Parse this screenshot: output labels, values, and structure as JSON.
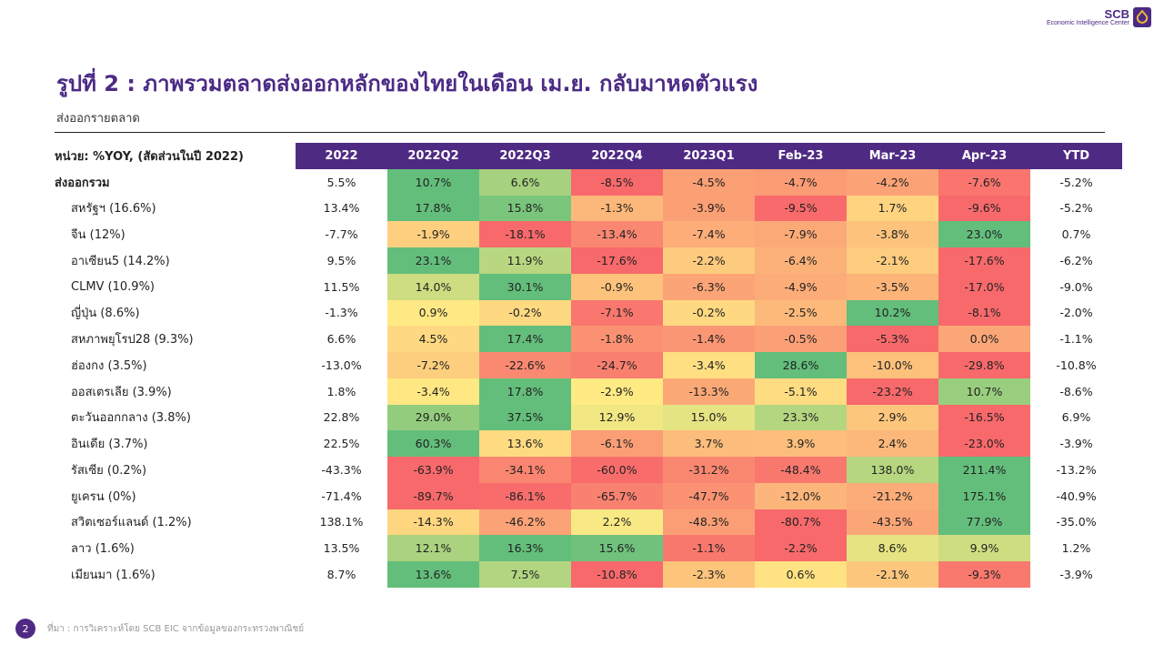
{
  "logo": {
    "brand": "SCB",
    "subtitle": "Economic Intelligence Center"
  },
  "title": "รูปที่ 2 : ภาพรวมตลาดส่งออกหลักของไทยในเดือน เม.ย. กลับมาหดตัวแรง",
  "subtitle": "ส่งออกรายตลาด",
  "colors": {
    "accent": "#4F2A83",
    "heat_low": "#F8696B",
    "heat_mid": "#FFEB84",
    "heat_high": "#63BE7B"
  },
  "chart_data": {
    "type": "heatmap",
    "unit_label": "หน่วย: %YOY, (สัดส่วนในปี 2022)",
    "columns": [
      "2022",
      "2022Q2",
      "2022Q3",
      "2022Q4",
      "2023Q1",
      "Feb-23",
      "Mar-23",
      "Apr-23",
      "YTD"
    ],
    "colored_columns": [
      "2022Q2",
      "2022Q3",
      "2022Q4",
      "2023Q1",
      "Feb-23",
      "Mar-23",
      "Apr-23"
    ],
    "color_scale": "per-row red-yellow-green",
    "rows": [
      {
        "label": "ส่งออกรวม",
        "values": [
          5.5,
          10.7,
          6.6,
          -8.5,
          -4.5,
          -4.7,
          -4.2,
          -7.6,
          -5.2
        ]
      },
      {
        "label": "สหรัฐฯ (16.6%)",
        "values": [
          13.4,
          17.8,
          15.8,
          -1.3,
          -3.9,
          -9.5,
          1.7,
          -9.6,
          -5.2
        ]
      },
      {
        "label": "จีน (12%)",
        "values": [
          -7.7,
          -1.9,
          -18.1,
          -13.4,
          -7.4,
          -7.9,
          -3.8,
          23.0,
          0.7
        ]
      },
      {
        "label": "อาเซียน5 (14.2%)",
        "values": [
          9.5,
          23.1,
          11.9,
          -17.6,
          -2.2,
          -6.4,
          -2.1,
          -17.6,
          -6.2
        ]
      },
      {
        "label": "CLMV (10.9%)",
        "values": [
          11.5,
          14.0,
          30.1,
          -0.9,
          -6.3,
          -4.9,
          -3.5,
          -17.0,
          -9.0
        ]
      },
      {
        "label": "ญี่ปุ่น (8.6%)",
        "values": [
          -1.3,
          0.9,
          -0.2,
          -7.1,
          -0.2,
          -2.5,
          10.2,
          -8.1,
          -2.0
        ]
      },
      {
        "label": "สหภาพยุโรป28 (9.3%)",
        "values": [
          6.6,
          4.5,
          17.4,
          -1.8,
          -1.4,
          -0.5,
          -5.3,
          0.0,
          -1.1
        ]
      },
      {
        "label": "ฮ่องกง (3.5%)",
        "values": [
          -13.0,
          -7.2,
          -22.6,
          -24.7,
          -3.4,
          28.6,
          -10.0,
          -29.8,
          -10.8
        ]
      },
      {
        "label": "ออสเตรเลีย (3.9%)",
        "values": [
          1.8,
          -3.4,
          17.8,
          -2.9,
          -13.3,
          -5.1,
          -23.2,
          10.7,
          -8.6
        ]
      },
      {
        "label": "ตะวันออกกลาง (3.8%)",
        "values": [
          22.8,
          29.0,
          37.5,
          12.9,
          15.0,
          23.3,
          2.9,
          -16.5,
          6.9
        ]
      },
      {
        "label": "อินเดีย (3.7%)",
        "values": [
          22.5,
          60.3,
          13.6,
          -6.1,
          3.7,
          3.9,
          2.4,
          -23.0,
          -3.9
        ]
      },
      {
        "label": "รัสเซีย (0.2%)",
        "values": [
          -43.3,
          -63.9,
          -34.1,
          -60.0,
          -31.2,
          -48.4,
          138.0,
          211.4,
          -13.2
        ]
      },
      {
        "label": "ยูเครน (0%)",
        "values": [
          -71.4,
          -89.7,
          -86.1,
          -65.7,
          -47.7,
          -12.0,
          -21.2,
          175.1,
          -40.9
        ]
      },
      {
        "label": "สวิตเซอร์แลนด์ (1.2%)",
        "values": [
          138.1,
          -14.3,
          -46.2,
          2.2,
          -48.3,
          -80.7,
          -43.5,
          77.9,
          -35.0
        ]
      },
      {
        "label": "ลาว (1.6%)",
        "values": [
          13.5,
          12.1,
          16.3,
          15.6,
          -1.1,
          -2.2,
          8.6,
          9.9,
          1.2
        ]
      },
      {
        "label": "เมียนมา (1.6%)",
        "values": [
          8.7,
          13.6,
          7.5,
          -10.8,
          -2.3,
          0.6,
          -2.1,
          -9.3,
          -3.9
        ]
      }
    ]
  },
  "footer": {
    "page": "2",
    "source": "ที่มา : การวิเคราะห์โดย SCB EIC จากข้อมูลของกระทรวงพาณิชย์"
  }
}
